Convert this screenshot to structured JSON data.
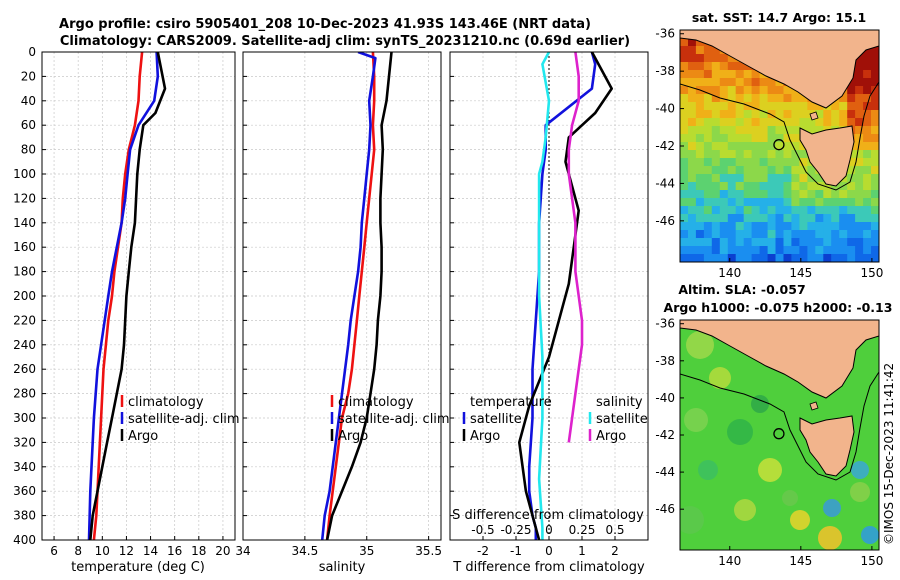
{
  "colors": {
    "red": "#ee1111",
    "blue": "#1111dd",
    "black": "#000000",
    "cyan": "#22e8ee",
    "magenta": "#dd22cc",
    "land": "#f2b48c",
    "grid": "#c8c8c8"
  },
  "title": {
    "line1": "Argo profile: csiro 5905401_208 10-Dec-2023 41.93S 143.46E (NRT data)",
    "line2": "Climatology: CARS2009. Satellite-adj clim: synTS_20231210.nc (0.69d earlier)"
  },
  "chart_data": [
    {
      "type": "line",
      "panel": "temperature",
      "xlabel": "temperature (deg C)",
      "xlim": [
        5,
        21
      ],
      "xticks": [
        "6",
        "8",
        "10",
        "12",
        "14",
        "16",
        "18",
        "20"
      ],
      "xtick_values": [
        6,
        8,
        10,
        12,
        14,
        16,
        18,
        20
      ],
      "ylim": [
        400,
        0
      ],
      "yticks": [
        "0",
        "20",
        "40",
        "60",
        "80",
        "100",
        "120",
        "140",
        "160",
        "180",
        "200",
        "220",
        "240",
        "260",
        "280",
        "300",
        "320",
        "340",
        "360",
        "380",
        "400"
      ],
      "ytick_values": [
        0,
        20,
        40,
        60,
        80,
        100,
        120,
        140,
        160,
        180,
        200,
        220,
        240,
        260,
        280,
        300,
        320,
        340,
        360,
        380,
        400
      ],
      "legend": [
        "climatology",
        "satellite-adj. clim",
        "Argo"
      ],
      "series": [
        {
          "name": "climatology",
          "color": "red",
          "x": [
            13.3,
            13.1,
            13.0,
            12.7,
            12.2,
            11.9,
            11.7,
            11.6,
            11.3,
            11.0,
            10.8,
            10.5,
            10.3,
            10.1,
            9.9,
            9.7,
            9.5,
            9.3
          ],
          "y": [
            0,
            20,
            40,
            60,
            80,
            100,
            120,
            140,
            160,
            180,
            200,
            220,
            240,
            260,
            300,
            340,
            380,
            400
          ]
        },
        {
          "name": "satellite-adj. clim",
          "color": "blue",
          "x": [
            14.5,
            14.6,
            14.3,
            13.0,
            12.3,
            12.1,
            11.9,
            11.6,
            11.2,
            10.8,
            10.5,
            10.2,
            9.9,
            9.6,
            9.3,
            9.0,
            8.9
          ],
          "y": [
            0,
            20,
            40,
            60,
            80,
            100,
            120,
            140,
            160,
            180,
            200,
            220,
            240,
            260,
            300,
            360,
            400
          ]
        },
        {
          "name": "Argo",
          "color": "black",
          "x": [
            14.6,
            14.8,
            15.0,
            15.2,
            14.4,
            13.4,
            13.1,
            12.9,
            12.8,
            12.7,
            12.4,
            12.2,
            12.0,
            11.9,
            11.8,
            11.6,
            11.2,
            10.8,
            10.4,
            10.0,
            9.6,
            9.2,
            9.0
          ],
          "y": [
            0,
            10,
            20,
            30,
            50,
            60,
            80,
            100,
            120,
            140,
            160,
            180,
            200,
            220,
            240,
            260,
            280,
            300,
            320,
            340,
            360,
            380,
            400
          ]
        }
      ]
    },
    {
      "type": "line",
      "panel": "salinity",
      "xlabel": "salinity",
      "xlim": [
        34,
        35.6
      ],
      "xticks": [
        "34",
        "34.5",
        "35",
        "35.5"
      ],
      "xtick_values": [
        34,
        34.5,
        35,
        35.5
      ],
      "ylim": [
        400,
        0
      ],
      "legend": [
        "climatology",
        "satellite-adj. clim",
        "Argo"
      ],
      "series": [
        {
          "name": "climatology",
          "color": "red",
          "x": [
            35.05,
            35.06,
            35.06,
            35.05,
            35.06,
            35.04,
            35.02,
            35.0,
            34.98,
            34.96,
            34.94,
            34.92,
            34.9,
            34.88,
            34.85,
            34.8,
            34.75,
            34.7,
            34.68
          ],
          "y": [
            0,
            20,
            40,
            60,
            80,
            100,
            120,
            140,
            160,
            180,
            200,
            220,
            240,
            260,
            280,
            300,
            340,
            380,
            400
          ]
        },
        {
          "name": "satellite-adj. clim",
          "color": "blue",
          "x": [
            34.93,
            35.07,
            35.05,
            35.02,
            35.03,
            35.02,
            35.0,
            34.98,
            34.96,
            34.95,
            34.93,
            34.9,
            34.87,
            34.85,
            34.8,
            34.75,
            34.7,
            34.66,
            34.64
          ],
          "y": [
            0,
            5,
            20,
            40,
            60,
            80,
            100,
            120,
            140,
            160,
            180,
            200,
            220,
            240,
            280,
            320,
            360,
            380,
            400
          ]
        },
        {
          "name": "Argo",
          "color": "black",
          "x": [
            35.2,
            35.18,
            35.16,
            35.12,
            35.13,
            35.12,
            35.11,
            35.11,
            35.12,
            35.12,
            35.11,
            35.09,
            35.08,
            35.06,
            35.03,
            35.0,
            34.95,
            34.88,
            34.8,
            34.72,
            34.68
          ],
          "y": [
            0,
            20,
            40,
            60,
            80,
            100,
            120,
            140,
            160,
            180,
            200,
            220,
            240,
            260,
            280,
            300,
            320,
            340,
            360,
            380,
            400
          ]
        }
      ]
    },
    {
      "type": "line",
      "panel": "difference",
      "xlabel": "T difference from climatology",
      "xlabel_top": "S difference from climatology",
      "xlim": [
        -3,
        3
      ],
      "xticks": [
        "-2",
        "-1",
        "0",
        "1",
        "2"
      ],
      "xtick_values": [
        -2,
        -1,
        0,
        1,
        2
      ],
      "sticks": [
        "-0.5",
        "-0.25",
        "0",
        "0.25",
        "0.5"
      ],
      "stick_values": [
        -2,
        -1,
        0,
        1,
        2
      ],
      "ylim": [
        400,
        0
      ],
      "legend_left_title": "temperature",
      "legend_right_title": "salinity",
      "legend": [
        "satellite",
        "Argo",
        "satellite",
        "Argo"
      ],
      "series": [
        {
          "name": "T satellite",
          "color": "blue",
          "x": [
            1.3,
            1.4,
            1.3,
            -0.1,
            -0.1,
            -0.2,
            -0.3,
            -0.3,
            -0.4,
            -0.5,
            -0.5,
            -0.6,
            -0.6,
            -0.5,
            -0.4,
            -0.4
          ],
          "y": [
            0,
            10,
            30,
            60,
            80,
            100,
            140,
            180,
            220,
            260,
            300,
            340,
            360,
            380,
            390,
            400
          ]
        },
        {
          "name": "T Argo",
          "color": "black",
          "x": [
            1.3,
            1.6,
            1.9,
            1.4,
            0.6,
            0.5,
            0.7,
            0.9,
            0.8,
            0.7,
            0.6,
            0.4,
            0.2,
            0.0,
            -0.3,
            -0.6,
            -0.9,
            -0.7,
            -0.4,
            -0.3
          ],
          "y": [
            0,
            15,
            30,
            50,
            70,
            90,
            110,
            130,
            150,
            170,
            190,
            210,
            230,
            250,
            270,
            290,
            320,
            360,
            390,
            400
          ]
        },
        {
          "name": "S satellite",
          "color": "cyan",
          "x": [
            0.0,
            -0.2,
            0.0,
            -0.1,
            -0.2,
            -0.3,
            -0.3,
            -0.3,
            -0.2,
            -0.2,
            -0.3,
            -0.2,
            -0.2
          ],
          "y": [
            0,
            10,
            40,
            70,
            90,
            100,
            150,
            200,
            250,
            300,
            350,
            390,
            400
          ]
        },
        {
          "name": "S Argo",
          "color": "magenta",
          "x": [
            0.8,
            0.9,
            0.9,
            0.7,
            0.6,
            0.6,
            0.7,
            0.8,
            0.8,
            0.8,
            0.9,
            1.0,
            1.0,
            0.9,
            0.8,
            0.7,
            0.6
          ],
          "y": [
            0,
            20,
            40,
            60,
            80,
            100,
            120,
            140,
            160,
            180,
            200,
            220,
            240,
            260,
            280,
            300,
            320
          ]
        }
      ]
    }
  ],
  "map_sst": {
    "title": "sat. SST: 14.7 Argo: 15.1",
    "yticks": [
      "-36",
      "-38",
      "-40",
      "-42",
      "-44",
      "-46"
    ],
    "ytick_values": [
      -36,
      -38,
      -40,
      -42,
      -44,
      -46
    ],
    "xticks": [
      "140",
      "145",
      "150"
    ],
    "xtick_values": [
      140,
      145,
      150
    ],
    "lon_range": [
      136.5,
      150.5
    ],
    "lat_range": [
      -48.2,
      -35.8
    ],
    "float_lon": 143.46,
    "float_lat": -41.93
  },
  "map_sla": {
    "title_line1": "Altim. SLA: -0.057",
    "title_line2": "Argo h1000: -0.075 h2000: -0.13",
    "yticks": [
      "-36",
      "-38",
      "-40",
      "-42",
      "-44",
      "-46"
    ],
    "ytick_values": [
      -36,
      -38,
      -40,
      -42,
      -44,
      -46
    ],
    "xticks": [
      "140",
      "145",
      "150"
    ],
    "xtick_values": [
      140,
      145,
      150
    ],
    "lon_range": [
      136.5,
      150.5
    ],
    "lat_range": [
      -48.2,
      -35.8
    ],
    "float_lon": 143.46,
    "float_lat": -41.93
  },
  "credit": "©IMOS 15-Dec-2023 11:41:42"
}
